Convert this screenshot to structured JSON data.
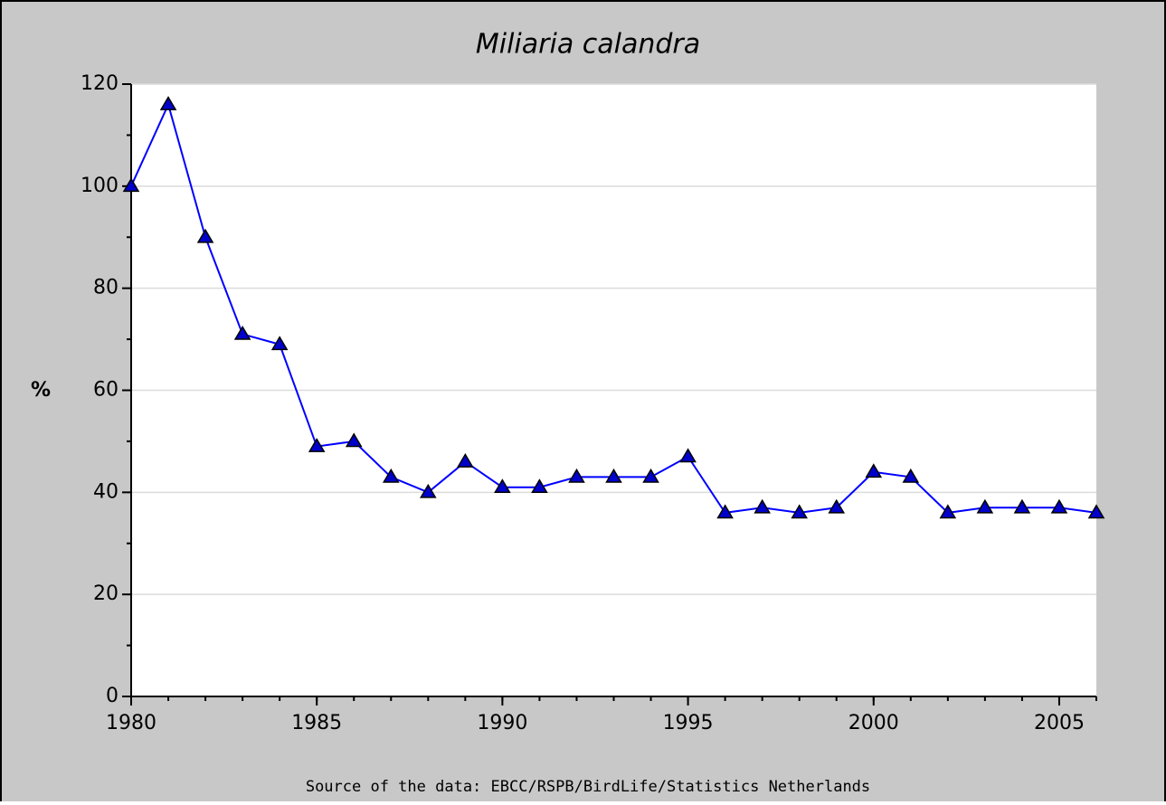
{
  "chart_data": {
    "type": "line",
    "title": "Miliaria calandra",
    "y_label": "%",
    "source": "Source of the data: EBCC/RSPB/BirdLife/Statistics Netherlands",
    "x": [
      1980,
      1981,
      1982,
      1983,
      1984,
      1985,
      1986,
      1987,
      1988,
      1989,
      1990,
      1991,
      1992,
      1993,
      1994,
      1995,
      1996,
      1997,
      1998,
      1999,
      2000,
      2001,
      2002,
      2003,
      2004,
      2005,
      2006
    ],
    "values": [
      100,
      116,
      90,
      71,
      69,
      49,
      50,
      43,
      40,
      46,
      41,
      41,
      43,
      43,
      43,
      47,
      36,
      37,
      36,
      37,
      44,
      43,
      36,
      37,
      37,
      37,
      36
    ],
    "color": "#0000ff",
    "marker_color": "#0000cc",
    "xlim": [
      1980,
      2006
    ],
    "xticks": [
      1980,
      1985,
      1990,
      1995,
      2000,
      2005
    ],
    "ylim": [
      0,
      120
    ],
    "yticks": [
      0,
      20,
      40,
      60,
      80,
      100,
      120
    ],
    "grid": true
  }
}
